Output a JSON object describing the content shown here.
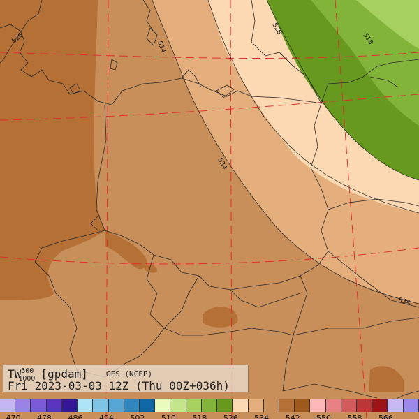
{
  "title": {
    "var": "TW",
    "sup": "500",
    "sub": "1000",
    "unit": "[gpdam]",
    "model": "GFS (NCEP)",
    "time": "Fri 2023-03-03 12Z (Thu 00Z+036h)"
  },
  "contour_labels": [
    {
      "text": "526",
      "value": 526
    },
    {
      "text": "518",
      "value": 518
    },
    {
      "text": "534",
      "value": 534
    },
    {
      "text": "534",
      "value": 534
    },
    {
      "text": "534",
      "value": 534
    },
    {
      "text": "526",
      "value": 526
    }
  ],
  "colorbar": {
    "colors": [
      "#c3b4f2",
      "#9b82e6",
      "#7a5ad6",
      "#5a36c0",
      "#341796",
      "#aee4f7",
      "#7ec4e6",
      "#55a6d4",
      "#2f86bd",
      "#0f68a4",
      "#eafcbc",
      "#c3e58b",
      "#a6d161",
      "#83b43a",
      "#66991e",
      "#fdd9b3",
      "#e5af7d",
      "#c98f5a",
      "#b57036",
      "#9e5a1c",
      "#fcb8b8",
      "#e88282",
      "#d45b5b",
      "#bc3636",
      "#9a1414",
      "#c8b8f4",
      "#9c88e8"
    ],
    "labels": [
      "470",
      "478",
      "486",
      "494",
      "502",
      "510",
      "518",
      "526",
      "534",
      "542",
      "550",
      "558",
      "566"
    ]
  }
}
